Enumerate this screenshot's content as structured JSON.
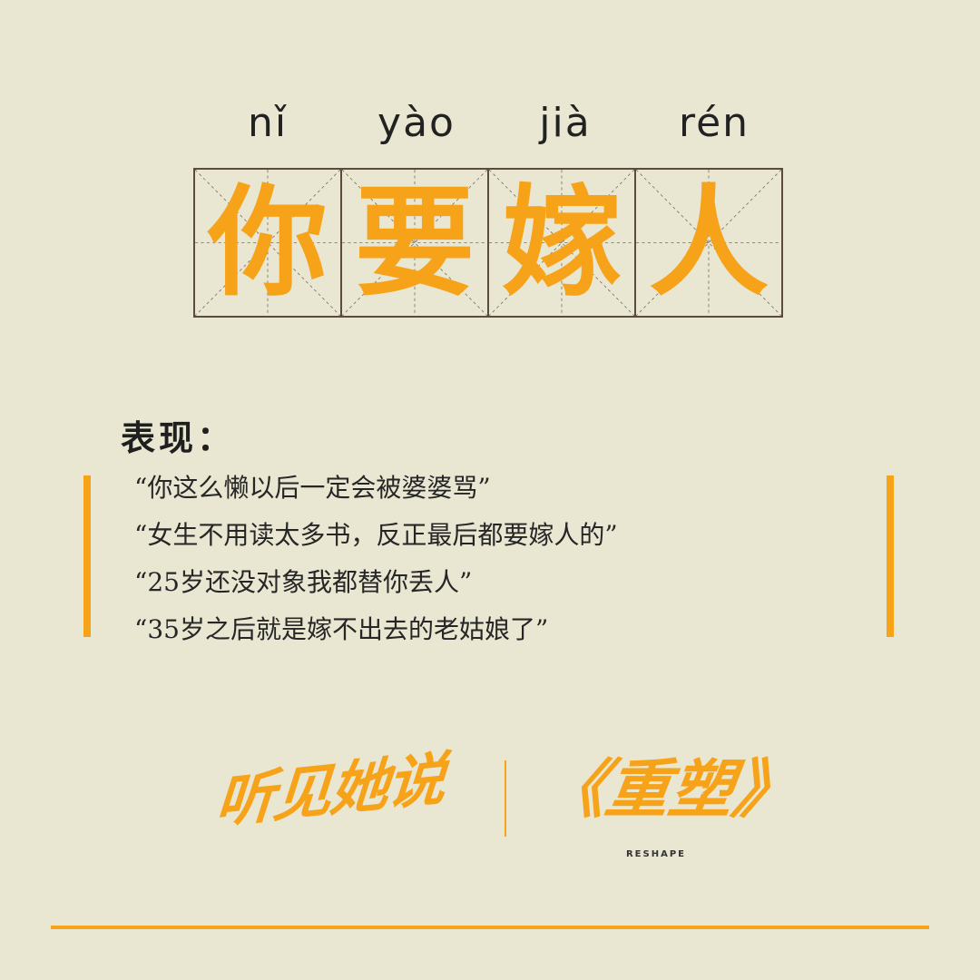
{
  "pinyin": [
    "nǐ",
    "yào",
    "jià",
    "rén"
  ],
  "characters": [
    "你",
    "要",
    "嫁",
    "人"
  ],
  "section": {
    "title": "表现："
  },
  "quotes": [
    "“你这么懒以后一定会被婆婆骂”",
    "“女生不用读太多书，反正最后都要嫁人的”",
    "“25岁还没对象我都替你丢人”",
    "“35岁之后就是嫁不出去的老姑娘了”"
  ],
  "logos": {
    "left": "听见她说",
    "right": "《重塑》",
    "right_sub": "RESHAPE"
  },
  "colors": {
    "accent": "#f6a31a",
    "background": "#e9e6d2",
    "grid": "#5b4a40"
  }
}
